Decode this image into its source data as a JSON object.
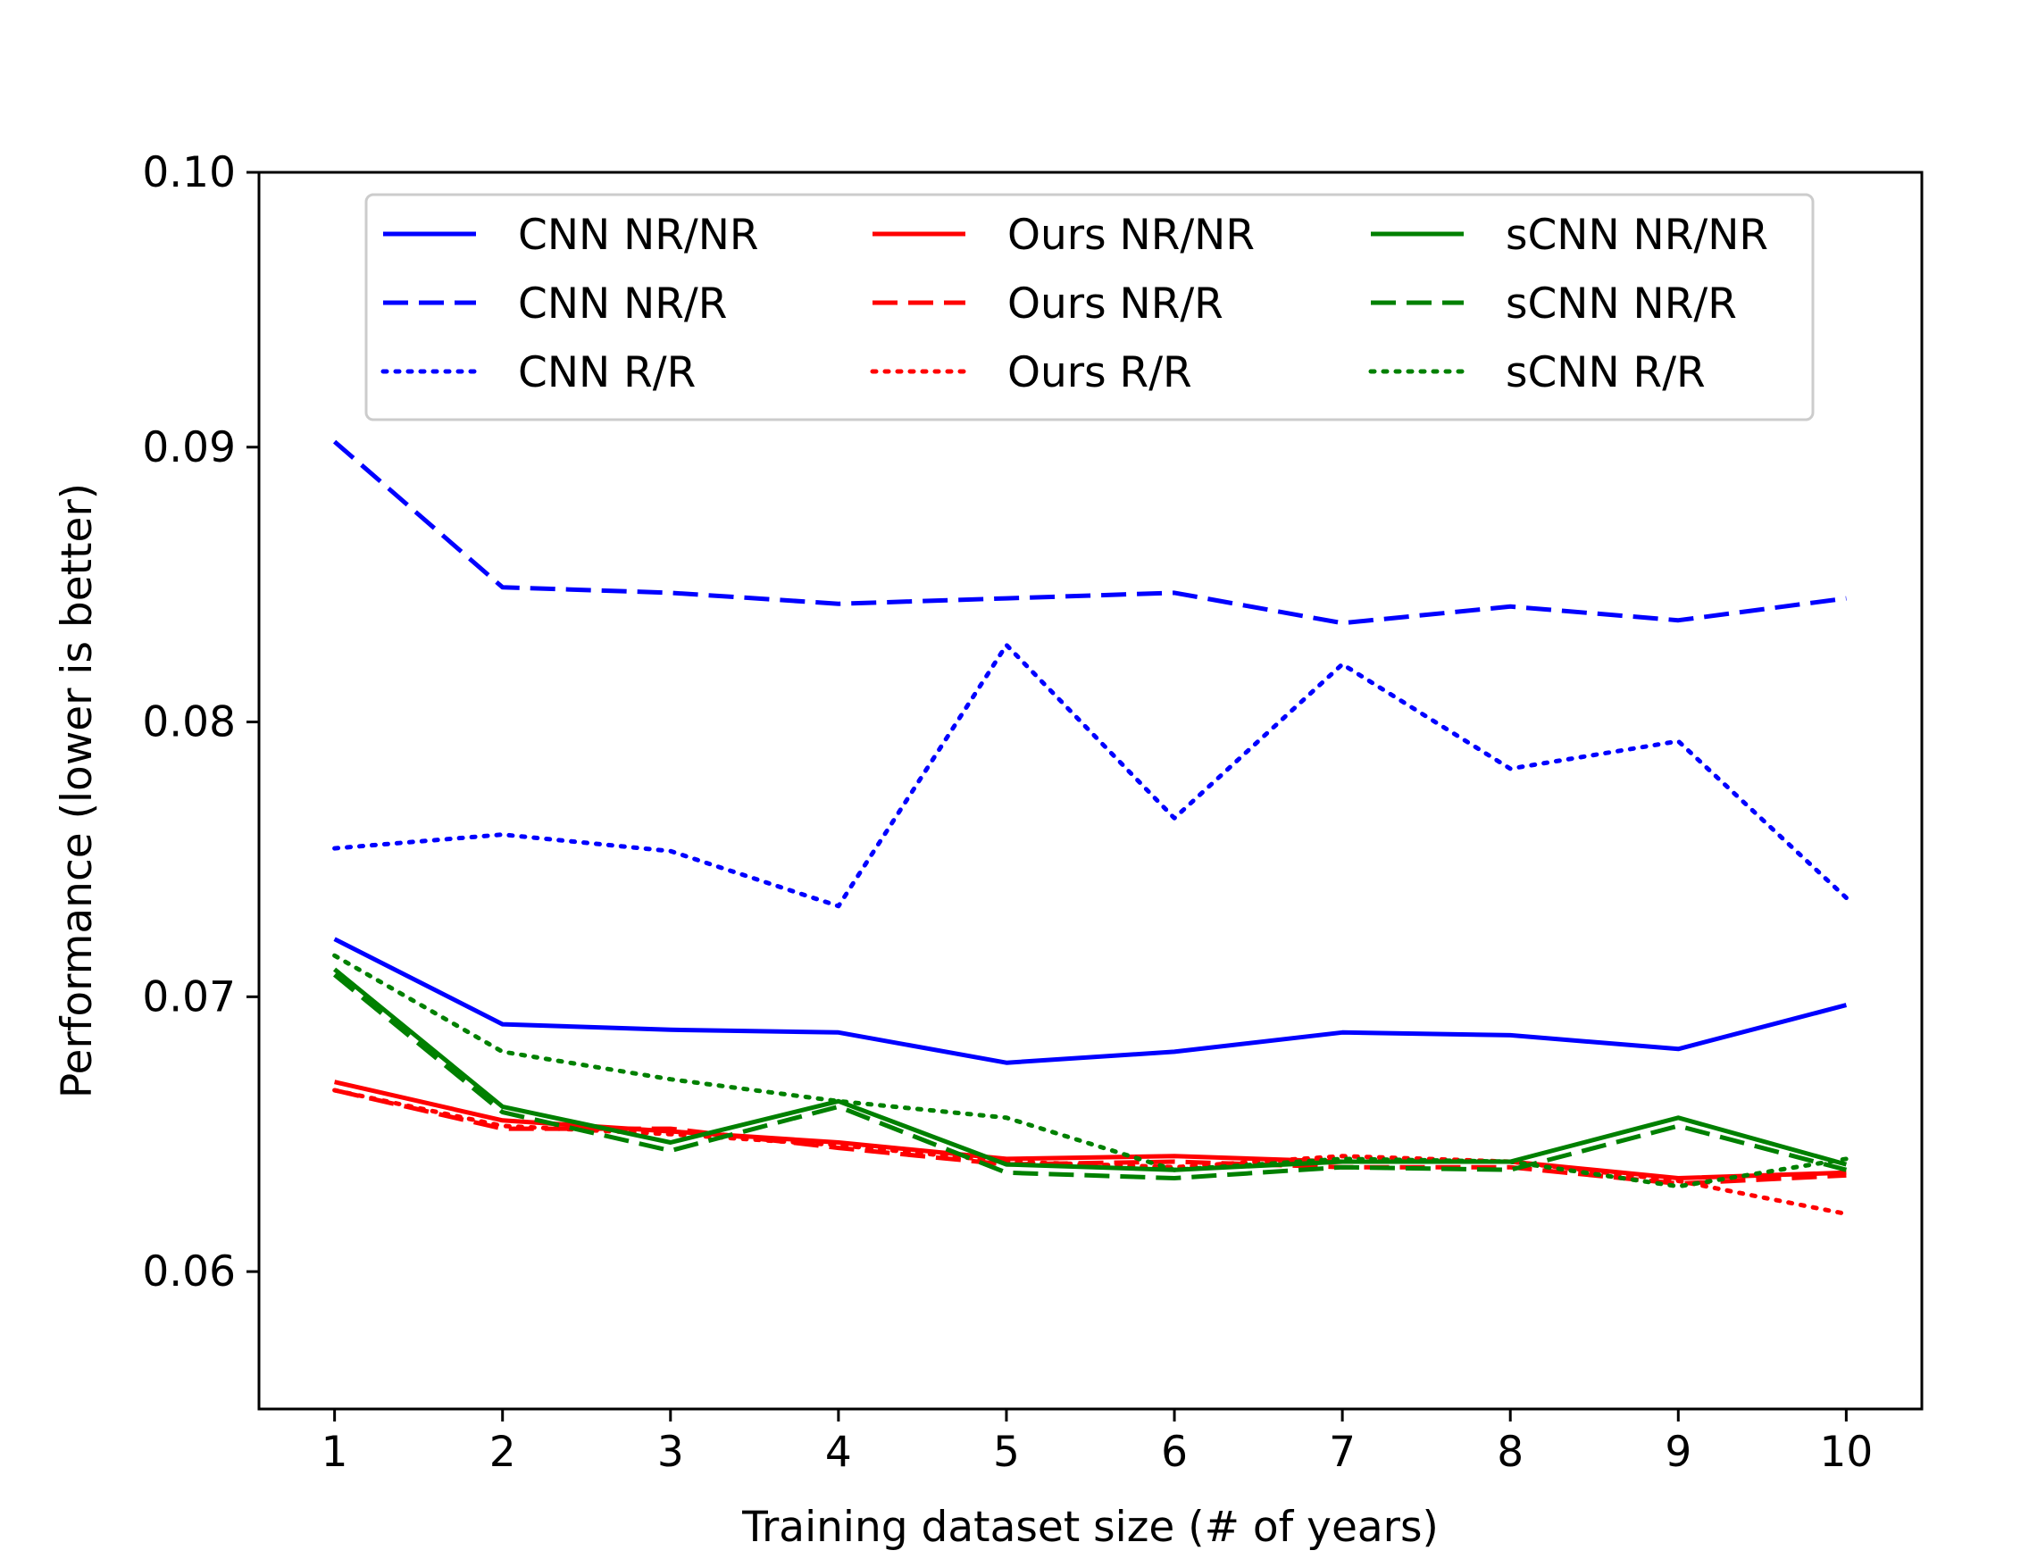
{
  "chart_data": {
    "type": "line",
    "title": "",
    "xlabel": "Training dataset size (# of years)",
    "ylabel": "Performance (lower is better)",
    "xlim": [
      0.55,
      10.45
    ],
    "ylim": [
      0.055,
      0.1
    ],
    "x": [
      1,
      2,
      3,
      4,
      5,
      6,
      7,
      8,
      9,
      10
    ],
    "x_tick_labels": [
      "1",
      "2",
      "3",
      "4",
      "5",
      "6",
      "7",
      "8",
      "9",
      "10"
    ],
    "y_ticks": [
      0.06,
      0.07,
      0.08,
      0.09,
      0.1
    ],
    "y_tick_labels": [
      "0.06",
      "0.07",
      "0.08",
      "0.09",
      "0.10"
    ],
    "grid": false,
    "legend_position": "top-center",
    "legend_columns": 3,
    "series": [
      {
        "name": "CNN NR/NR",
        "color": "#0000ff",
        "style": "solid",
        "values": [
          0.0721,
          0.069,
          0.0688,
          0.0687,
          0.0676,
          0.068,
          0.0687,
          0.0686,
          0.0681,
          0.0697
        ]
      },
      {
        "name": "CNN NR/R",
        "color": "#0000ff",
        "style": "dashed",
        "values": [
          0.0902,
          0.0849,
          0.0847,
          0.0843,
          0.0845,
          0.0847,
          0.0836,
          0.0842,
          0.0837,
          0.0845
        ]
      },
      {
        "name": "CNN R/R",
        "color": "#0000ff",
        "style": "dotted",
        "values": [
          0.0754,
          0.0759,
          0.0753,
          0.0733,
          0.0828,
          0.0765,
          0.0821,
          0.0783,
          0.0793,
          0.0736
        ]
      },
      {
        "name": "Ours NR/NR",
        "color": "#ff0000",
        "style": "solid",
        "values": [
          0.0669,
          0.0655,
          0.0651,
          0.0647,
          0.0641,
          0.0642,
          0.064,
          0.064,
          0.0634,
          0.0636
        ]
      },
      {
        "name": "Ours NR/R",
        "color": "#ff0000",
        "style": "dashed",
        "values": [
          0.0666,
          0.0652,
          0.0652,
          0.0645,
          0.0639,
          0.064,
          0.0638,
          0.0638,
          0.0632,
          0.0635
        ]
      },
      {
        "name": "Ours R/R",
        "color": "#ff0000",
        "style": "dotted",
        "values": [
          0.0666,
          0.0653,
          0.065,
          0.0646,
          0.064,
          0.0638,
          0.0642,
          0.064,
          0.0633,
          0.0621
        ]
      },
      {
        "name": "sCNN NR/NR",
        "color": "#008000",
        "style": "solid",
        "values": [
          0.071,
          0.066,
          0.0647,
          0.0662,
          0.0639,
          0.0637,
          0.064,
          0.064,
          0.0656,
          0.0639
        ]
      },
      {
        "name": "sCNN NR/R",
        "color": "#008000",
        "style": "dashed",
        "values": [
          0.0708,
          0.0658,
          0.0644,
          0.066,
          0.0636,
          0.0634,
          0.0638,
          0.0637,
          0.0653,
          0.0637
        ]
      },
      {
        "name": "sCNN R/R",
        "color": "#008000",
        "style": "dotted",
        "values": [
          0.0715,
          0.068,
          0.067,
          0.0662,
          0.0656,
          0.0637,
          0.0641,
          0.064,
          0.0631,
          0.0641
        ]
      }
    ]
  }
}
